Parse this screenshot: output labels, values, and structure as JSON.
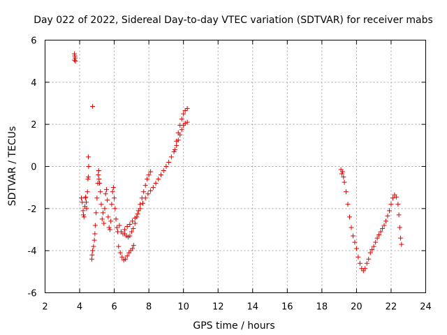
{
  "chart_data": {
    "type": "scatter",
    "title": "Day 022 of 2022, Sidereal Day-to-day VTEC variation (SDTVAR) for receiver mabs",
    "xlabel": "GPS time / hours",
    "ylabel": "SDTVAR / TECUs",
    "xlim": [
      2,
      24
    ],
    "ylim": [
      -6,
      6
    ],
    "xticks": [
      2,
      4,
      6,
      8,
      10,
      12,
      14,
      16,
      18,
      20,
      22,
      24
    ],
    "yticks": [
      -6,
      -4,
      -2,
      0,
      2,
      4,
      6
    ],
    "grid": true,
    "marker": "plus",
    "color": "#e00000",
    "series": [
      {
        "name": "SDTVAR",
        "points": [
          [
            3.7,
            5.35
          ],
          [
            3.72,
            5.25
          ],
          [
            3.74,
            5.15
          ],
          [
            3.76,
            5.0
          ],
          [
            3.7,
            5.05
          ],
          [
            4.75,
            2.85
          ],
          [
            4.1,
            -1.5
          ],
          [
            4.15,
            -1.7
          ],
          [
            4.2,
            -2.1
          ],
          [
            4.22,
            -2.3
          ],
          [
            4.25,
            -2.4
          ],
          [
            4.3,
            -1.9
          ],
          [
            4.33,
            -1.5
          ],
          [
            4.35,
            -1.45
          ],
          [
            4.38,
            -1.7
          ],
          [
            4.4,
            -2.0
          ],
          [
            4.45,
            -1.2
          ],
          [
            4.48,
            -0.6
          ],
          [
            4.5,
            -0.5
          ],
          [
            4.5,
            0.45
          ],
          [
            4.52,
            0.0
          ],
          [
            4.7,
            -4.4
          ],
          [
            4.72,
            -4.2
          ],
          [
            4.75,
            -4.0
          ],
          [
            4.8,
            -3.8
          ],
          [
            4.85,
            -3.5
          ],
          [
            4.88,
            -3.2
          ],
          [
            4.9,
            -2.8
          ],
          [
            4.95,
            -2.2
          ],
          [
            5.0,
            -1.5
          ],
          [
            5.05,
            -0.8
          ],
          [
            5.08,
            -0.4
          ],
          [
            5.1,
            -0.2
          ],
          [
            5.12,
            -0.6
          ],
          [
            5.15,
            -0.8
          ],
          [
            5.2,
            -1.2
          ],
          [
            5.25,
            -1.8
          ],
          [
            5.3,
            -2.5
          ],
          [
            5.35,
            -2.2
          ],
          [
            5.4,
            -2.7
          ],
          [
            5.45,
            -2.0
          ],
          [
            5.5,
            -1.3
          ],
          [
            5.55,
            -1.1
          ],
          [
            5.6,
            -1.6
          ],
          [
            5.65,
            -2.4
          ],
          [
            5.7,
            -2.9
          ],
          [
            5.75,
            -3.0
          ],
          [
            5.8,
            -2.6
          ],
          [
            5.85,
            -1.8
          ],
          [
            5.9,
            -1.2
          ],
          [
            5.95,
            -1.0
          ],
          [
            6.0,
            -1.5
          ],
          [
            6.05,
            -2.0
          ],
          [
            6.1,
            -2.5
          ],
          [
            6.15,
            -2.9
          ],
          [
            6.2,
            -3.1
          ],
          [
            6.25,
            -3.8
          ],
          [
            6.35,
            -4.1
          ],
          [
            6.45,
            -4.3
          ],
          [
            6.55,
            -4.45
          ],
          [
            6.65,
            -4.4
          ],
          [
            6.75,
            -4.25
          ],
          [
            6.85,
            -4.1
          ],
          [
            6.95,
            -4.0
          ],
          [
            7.05,
            -3.9
          ],
          [
            7.12,
            -3.75
          ],
          [
            6.3,
            -2.8
          ],
          [
            6.4,
            -3.1
          ],
          [
            6.5,
            -3.2
          ],
          [
            6.6,
            -3.2
          ],
          [
            6.7,
            -3.3
          ],
          [
            6.8,
            -3.35
          ],
          [
            6.9,
            -3.3
          ],
          [
            7.0,
            -3.1
          ],
          [
            7.1,
            -2.95
          ],
          [
            7.2,
            -2.7
          ],
          [
            7.3,
            -2.4
          ],
          [
            7.4,
            -2.1
          ],
          [
            7.5,
            -1.8
          ],
          [
            7.6,
            -1.5
          ],
          [
            7.7,
            -1.2
          ],
          [
            7.8,
            -0.9
          ],
          [
            7.9,
            -0.6
          ],
          [
            8.0,
            -0.4
          ],
          [
            8.1,
            -0.25
          ],
          [
            6.6,
            -3.0
          ],
          [
            6.75,
            -2.85
          ],
          [
            6.9,
            -2.75
          ],
          [
            7.05,
            -2.6
          ],
          [
            7.2,
            -2.45
          ],
          [
            7.35,
            -2.25
          ],
          [
            7.5,
            -2.0
          ],
          [
            7.65,
            -1.75
          ],
          [
            7.8,
            -1.5
          ],
          [
            7.95,
            -1.3
          ],
          [
            8.1,
            -1.15
          ],
          [
            8.25,
            -1.0
          ],
          [
            8.4,
            -0.8
          ],
          [
            8.55,
            -0.6
          ],
          [
            8.7,
            -0.4
          ],
          [
            8.85,
            -0.2
          ],
          [
            9.0,
            0.0
          ],
          [
            9.15,
            0.2
          ],
          [
            9.3,
            0.45
          ],
          [
            9.45,
            0.7
          ],
          [
            9.6,
            1.0
          ],
          [
            9.7,
            1.25
          ],
          [
            9.8,
            1.5
          ],
          [
            9.9,
            1.75
          ],
          [
            10.0,
            1.95
          ],
          [
            10.1,
            2.05
          ],
          [
            10.22,
            2.1
          ],
          [
            9.5,
            0.8
          ],
          [
            9.6,
            1.2
          ],
          [
            9.7,
            1.6
          ],
          [
            9.8,
            1.95
          ],
          [
            9.9,
            2.25
          ],
          [
            10.0,
            2.5
          ],
          [
            10.1,
            2.65
          ],
          [
            10.22,
            2.75
          ],
          [
            19.1,
            -0.15
          ],
          [
            19.15,
            -0.35
          ],
          [
            19.2,
            -0.25
          ],
          [
            19.25,
            -0.5
          ],
          [
            19.3,
            -0.75
          ],
          [
            19.4,
            -1.2
          ],
          [
            19.5,
            -1.8
          ],
          [
            19.6,
            -2.4
          ],
          [
            19.7,
            -2.9
          ],
          [
            19.8,
            -3.3
          ],
          [
            19.9,
            -3.6
          ],
          [
            20.0,
            -3.9
          ],
          [
            20.1,
            -4.3
          ],
          [
            20.2,
            -4.6
          ],
          [
            20.3,
            -4.85
          ],
          [
            20.4,
            -4.95
          ],
          [
            20.5,
            -4.85
          ],
          [
            20.6,
            -4.6
          ],
          [
            20.7,
            -4.4
          ],
          [
            20.8,
            -4.1
          ],
          [
            20.9,
            -3.95
          ],
          [
            21.0,
            -3.8
          ],
          [
            21.1,
            -3.6
          ],
          [
            21.2,
            -3.4
          ],
          [
            21.3,
            -3.25
          ],
          [
            21.4,
            -3.1
          ],
          [
            21.5,
            -2.95
          ],
          [
            21.6,
            -2.8
          ],
          [
            21.7,
            -2.6
          ],
          [
            21.8,
            -2.35
          ],
          [
            21.9,
            -2.1
          ],
          [
            22.0,
            -1.8
          ],
          [
            22.1,
            -1.5
          ],
          [
            22.2,
            -1.35
          ],
          [
            22.3,
            -1.45
          ],
          [
            22.4,
            -1.8
          ],
          [
            22.45,
            -2.3
          ],
          [
            22.5,
            -2.9
          ],
          [
            22.55,
            -3.4
          ],
          [
            22.6,
            -3.7
          ]
        ]
      }
    ]
  }
}
